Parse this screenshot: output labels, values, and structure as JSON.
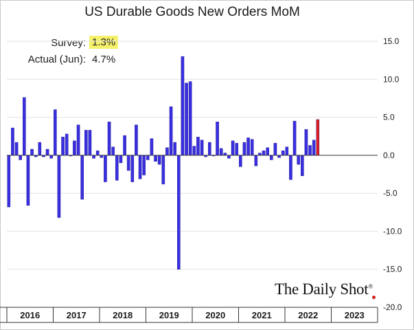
{
  "chart_data": {
    "type": "bar",
    "title": "US Durable Goods New Orders MoM",
    "legend": {
      "survey_label": "Survey:",
      "survey_value": "1.3%",
      "actual_label": "Actual (Jun):",
      "actual_value": "4.7%"
    },
    "ylim": [
      -20,
      15
    ],
    "y_ticks": [
      15,
      10,
      5,
      0,
      -5,
      -10,
      -15,
      -20
    ],
    "y_tick_labels": [
      "15.0",
      "10.0",
      "5.0",
      "0.0",
      "-5.0",
      "-10.0",
      "-15.0",
      "-20.0"
    ],
    "years": [
      "2016",
      "2017",
      "2018",
      "2019",
      "2020",
      "2021",
      "2022",
      "2023"
    ],
    "months_per_year": 12,
    "series": [
      {
        "name": "Durable goods new orders MoM (%)",
        "color": "#3a2fe0",
        "latest_color": "#e01e1e",
        "values": [
          -6.8,
          3.6,
          1.7,
          -0.6,
          7.6,
          -6.6,
          0.8,
          -0.2,
          1.7,
          -0.2,
          0.8,
          -0.4,
          6.0,
          -8.2,
          2.4,
          2.8,
          -0.1,
          1.9,
          4.0,
          -5.8,
          3.3,
          3.3,
          -0.4,
          0.6,
          -0.3,
          -3.5,
          4.4,
          1.1,
          -3.3,
          -1.0,
          2.6,
          -2.0,
          -3.5,
          4.0,
          -3.1,
          -2.6,
          -0.6,
          2.2,
          -0.8,
          -1.2,
          -3.8,
          1.0,
          6.4,
          1.7,
          -15.0,
          13.0,
          9.5,
          9.7,
          1.2,
          2.4,
          2.0,
          -0.2,
          1.7,
          -0.1,
          4.4,
          0.9,
          0.3,
          -0.4,
          1.9,
          1.6,
          -1.5,
          1.7,
          2.3,
          2.1,
          -1.4,
          0.3,
          0.6,
          1.0,
          -0.6,
          1.6,
          -0.3,
          0.6,
          1.1,
          -3.2,
          4.5,
          -1.2,
          -2.7,
          3.4,
          1.3,
          2.0,
          4.7
        ]
      }
    ]
  }
}
